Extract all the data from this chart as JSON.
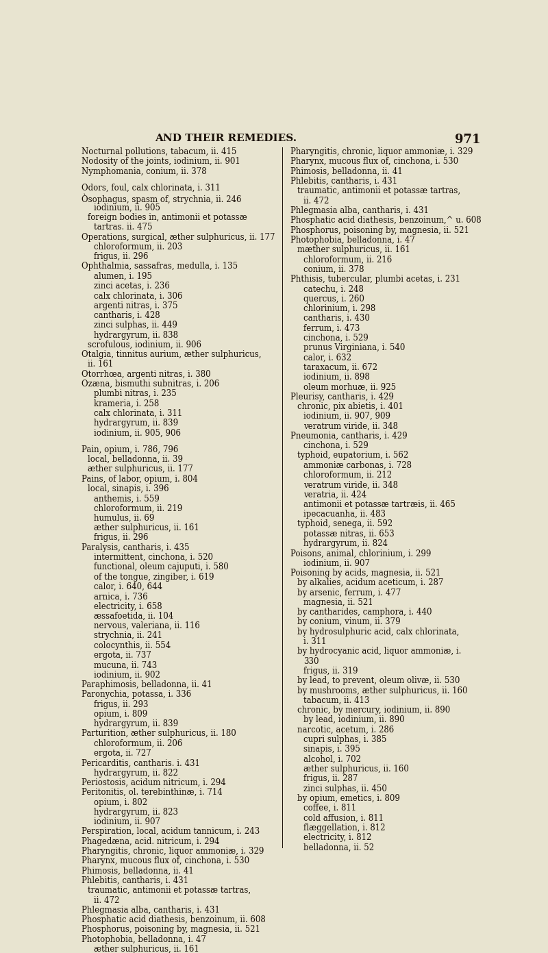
{
  "background_color": "#e8e4d0",
  "page_number": "971",
  "header": "AND THEIR REMEDIES.",
  "header_fontsize": 11,
  "page_num_fontsize": 13,
  "text_fontsize": 8.5,
  "text_color": "#1a1008",
  "left_column": [
    "Nocturnal pollutions, tabacum, ii. 415",
    "Nodosity of the joints, iodinium, ii. 901",
    "Nymphomania, conium, ii. 378",
    "",
    "Odors, foul, calx chlorinata, i. 311",
    "Òsophagus, spasm of, strychnia, ii. 246",
    "        iodinium, ii. 905",
    "    foreign bodies in, antimonii et potassæ",
    "        tartras. ii. 475",
    "Operations, surgical, æther sulphuricus, ii. 177",
    "        chloroformum, ii. 203",
    "        frigus, ii. 296",
    "Ophthalmia, sassafras, medulla, i. 135",
    "        alumen, i. 195",
    "        zinci acetas, i. 236",
    "        calx chlorinata, i. 306",
    "        argenti nitras, i. 375",
    "        cantharis, i. 428",
    "        zinci sulphas, ii. 449",
    "        hydrargyrum, ii. 838",
    "    scrofulous, iodinium, ii. 906",
    "Otalgia, tinnitus aurium, æther sulphuricus,",
    "    ii. 161",
    "Otorrhœa, argenti nitras, i. 380",
    "Ozæna, bismuthi subnitras, i. 206",
    "        plumbi nitras, i. 235",
    "        krameria, i. 258",
    "        calx chlorinata, i. 311",
    "        hydrargyrum, ii. 839",
    "        iodinium, ii. 905, 906",
    "",
    "Pain, opium, i. 786, 796",
    "    local, belladonna, ii. 39",
    "    æther sulphuricus, ii. 177",
    "Pains, of labor, opium, i. 804",
    "    local, sinapis, i. 396",
    "        anthemis, i. 559",
    "        chloroformum, ii. 219",
    "        humulus, ii. 69",
    "        æther sulphuricus, ii. 161",
    "        frigus, ii. 296",
    "Paralysis, cantharis, i. 435",
    "        intermittent, cinchona, i. 520",
    "        functional, oleum cajuputi, i. 580",
    "        of the tongue, zingiber, i. 619",
    "        calor, i. 640, 644",
    "        arnica, i. 736",
    "        electricity, i. 658",
    "        æssafoetida, ii. 104",
    "        nervous, valeriana, ii. 116",
    "        strychnia, ii. 241",
    "        colocynthis, ii. 554",
    "        ergota, ii. 737",
    "        mucuna, ii. 743",
    "        iodinium, ii. 902",
    "Paraphimosis, belladonna, ii. 41",
    "Paronychia, potassa, i. 336",
    "        frigus, ii. 293",
    "        opium, i. 809",
    "        hydrargyrum, ii. 839",
    "Parturition, æther sulphuricus, ii. 180",
    "        chloroformum, ii. 206",
    "        ergota, ii. 727",
    "Pericarditis, cantharis. i. 431",
    "        hydrargyrum, ii. 822",
    "Periostosis, acidum nitricum, i. 294",
    "Peritonitis, ol. terebinthinæ, i. 714",
    "        opium, i. 802",
    "        hydrargyrum, ii. 823",
    "        iodinium, ii. 907",
    "Perspiration, local, acidum tannicum, i. 243",
    "Phagedæna, acid. nitricum, i. 294",
    "Pharyngitis, chronic, liquor ammoniæ, i. 329",
    "Pharynx, mucous flux of, cinchona, i. 530",
    "Phimosis, belladonna, ii. 41",
    "Phlebitis, cantharis, i. 431",
    "    traumatic, antimonii et potassæ tartras,",
    "        ii. 472",
    "Phlegmasia alba, cantharis, i. 431",
    "Phosphatic acid diathesis, benzoinum, ii. 608",
    "Phosphorus, poisoning by, magnesia, ii. 521",
    "Photophobia, belladonna, i. 47",
    "        æther sulphuricus, ii. 161",
    "        chloroformum, ii. 216",
    "        conium, ii. 378",
    "Phthisis, tubercular, plumbi acetas, i. 231",
    "        catechu, i. 248",
    "        quercus, i. 260"
  ],
  "right_column": [
    "Pharyngitis, chronic, liquor ammoniæ, i. 329",
    "Pharynx, mucous flux of, cinchona, i. 530",
    "Phimosis, belladonna, ii. 41",
    "Phlebitis, cantharis, i. 431",
    "    traumatic, antimonii et potassæ tartras,",
    "        ii. 472",
    "Phlegmasia alba, cantharis, i. 431",
    "Phosphatic acid diathesis, benzoinum,^ u. 608",
    "Phosphorus, poisoning by, magnesia, ii. 521",
    "Photophobia, belladonna, i. 47",
    "    mæther sulphuricus, ii. 161",
    "        chloroformum, ii. 216",
    "        conium, ii. 378",
    "Phthisis, tubercular, plumbi acetas, i. 231",
    "        catechu, i. 248",
    "        quercus, i. 260",
    "        chlorinium, i. 298",
    "        cantharis, i. 430",
    "        ferrum, i. 473",
    "        cinchona, i. 529",
    "        prunus Virginiana, i. 540",
    "        calor, i. 632",
    "        taraxacum, ii. 672",
    "        iodinium, ii. 898",
    "        oleum morhuæ, ii. 925",
    "Pleurisy, cantharis, i. 429",
    "    chronic, pix abietis, i. 401",
    "        iodinium, ii. 907, 909",
    "        veratrum viride, ii. 348",
    "Pneumonia, cantharis, i. 429",
    "        cinchona, i. 529",
    "    typhoid, eupatorium, i. 562",
    "        ammoniæ carbonas, i. 728",
    "        chloroformum, ii. 212",
    "        veratrum viride, ii. 348",
    "        veratria, ii. 424",
    "        antimonii et potassæ tartræis, ii. 465",
    "        ipecacuanha, ii. 483",
    "    typhoid, senega, ii. 592",
    "        potassæ nitras, ii. 653",
    "        hydrargyrum, ii. 824",
    "Poisons, animal, chlorinium, i. 299",
    "        iodinium, ii. 907",
    "Poisoning by acids, magnesia, ii. 521",
    "    by alkalies, acidum aceticum, i. 287",
    "    by arsenic, ferrum, i. 477",
    "        magnesia, ii. 521",
    "    by cantharides, camphora, i. 440",
    "    by conium, vinum, ii. 379",
    "    by hydrosulphuric acid, calx chlorinata,",
    "        i. 311",
    "    by hydrocyanic acid, liquor ammoniæ, i.",
    "        330",
    "        frigus, ii. 319",
    "    by lead, to prevent, oleum olivæ, ii. 530",
    "    by mushrooms, æther sulphuricus, ii. 160",
    "        tabacum, ii. 413",
    "    chronic, by mercury, iodinium, ii. 890",
    "        by lead, iodinium, ii. 890",
    "    narcotic, acetum, i. 286",
    "        cupri sulphas, i. 385",
    "        sinapis, i. 395",
    "        alcohol, i. 702",
    "        æther sulphuricus, ii. 160",
    "        frigus, ii. 287",
    "        zinci sulphas, ii. 450",
    "    by opium, emetics, i. 809",
    "        coffee, i. 811",
    "        cold affusion, i. 811",
    "        flæggellation, i. 812",
    "        electricity, i. 812",
    "        belladonna, ii. 52"
  ]
}
